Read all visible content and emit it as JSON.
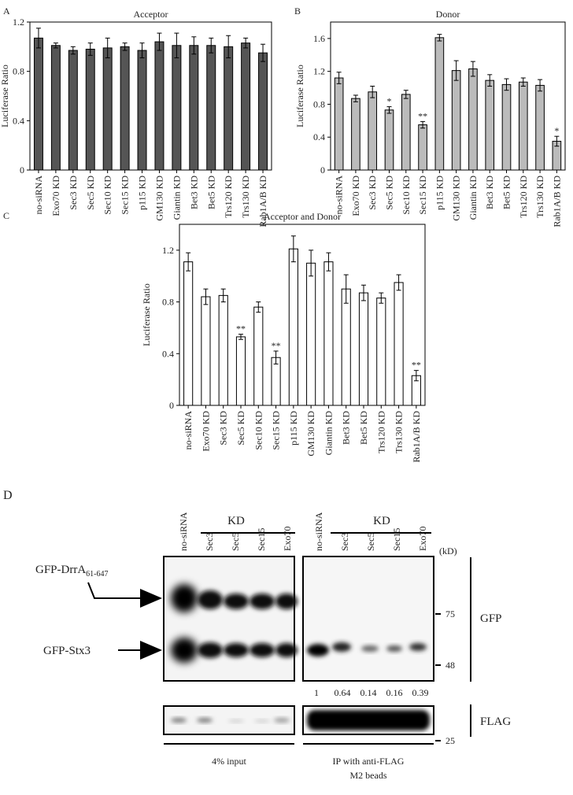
{
  "chart_data": [
    {
      "type": "bar",
      "panel_label": "A",
      "title": "Acceptor",
      "ylabel": "Luciferase Ratio",
      "categories": [
        "no-siRNA",
        "Exo70 KD",
        "Sec3 KD",
        "Sec5 KD",
        "Sec10 KD",
        "Sec15 KD",
        "p115 KD",
        "GM130 KD",
        "Giantin KD",
        "Bet3 KD",
        "Bet5 KD",
        "Trs120 KD",
        "Trs130 KD",
        "Rab1A/B KD"
      ],
      "values": [
        1.07,
        1.01,
        0.97,
        0.98,
        0.99,
        1.0,
        0.97,
        1.04,
        1.01,
        1.01,
        1.01,
        1.0,
        1.03,
        0.95
      ],
      "errors": [
        0.08,
        0.02,
        0.03,
        0.05,
        0.08,
        0.03,
        0.06,
        0.07,
        0.1,
        0.07,
        0.06,
        0.09,
        0.04,
        0.07
      ],
      "color": "#555555",
      "ylim": [
        0,
        1.2
      ],
      "yticks": [
        0,
        0.4,
        0.8,
        1.2
      ]
    },
    {
      "type": "bar",
      "panel_label": "B",
      "title": "Donor",
      "ylabel": "Luciferase Ratio",
      "categories": [
        "no-siRNA",
        "Exo70 KD",
        "Sec3 KD",
        "Sec5 KD",
        "Sec10 KD",
        "Sec15 KD",
        "p115 KD",
        "GM130 KD",
        "Giantin KD",
        "Bet3 KD",
        "Bet5 KD",
        "Trs120 KD",
        "Trs130 KD",
        "Rab1A/B KD"
      ],
      "values": [
        1.12,
        0.87,
        0.95,
        0.73,
        0.92,
        0.55,
        1.61,
        1.21,
        1.23,
        1.09,
        1.04,
        1.07,
        1.03,
        0.35
      ],
      "errors": [
        0.07,
        0.04,
        0.07,
        0.04,
        0.05,
        0.04,
        0.04,
        0.12,
        0.09,
        0.07,
        0.07,
        0.05,
        0.07,
        0.06
      ],
      "significance": [
        null,
        null,
        null,
        "*",
        null,
        "**",
        null,
        null,
        null,
        null,
        null,
        null,
        null,
        "*"
      ],
      "color": "#bbbbbb",
      "ylim": [
        0,
        1.8
      ],
      "yticks": [
        0,
        0.4,
        0.8,
        1.2,
        1.6
      ]
    },
    {
      "type": "bar",
      "panel_label": "C",
      "title": "Acceptor and Donor",
      "ylabel": "Luciferase Ratio",
      "categories": [
        "no-siRNA",
        "Exo70 KD",
        "Sec3 KD",
        "Sec5 KD",
        "Sec10 KD",
        "Sec15 KD",
        "p115 KD",
        "GM130 KD",
        "Giantin KD",
        "Bet3 KD",
        "Bet5 KD",
        "Trs120 KD",
        "Trs130 KD",
        "Rab1A/B KD"
      ],
      "values": [
        1.11,
        0.84,
        0.85,
        0.53,
        0.76,
        0.37,
        1.21,
        1.1,
        1.11,
        0.9,
        0.87,
        0.83,
        0.95,
        0.23
      ],
      "errors": [
        0.07,
        0.06,
        0.05,
        0.02,
        0.04,
        0.05,
        0.1,
        0.1,
        0.07,
        0.11,
        0.06,
        0.04,
        0.06,
        0.04
      ],
      "significance": [
        null,
        null,
        null,
        "**",
        null,
        "**",
        null,
        null,
        null,
        null,
        null,
        null,
        null,
        "**"
      ],
      "color": "#ffffff",
      "ylim": [
        0,
        1.4
      ],
      "yticks": [
        0,
        0.4,
        0.8,
        1.2
      ]
    }
  ],
  "blot": {
    "panel_label": "D",
    "kd_header": "KD",
    "lanes": [
      "no-siRNA",
      "Sec3",
      "Sec5",
      "Sec15",
      "Exo70"
    ],
    "proteins": [
      {
        "name": "GFP-DrrA",
        "subscript": "61-647"
      },
      {
        "name": "GFP-Stx3"
      }
    ],
    "marker_unit": "(kD)",
    "markers": [
      "75",
      "48",
      "25"
    ],
    "antibodies": [
      "GFP",
      "FLAG"
    ],
    "quantification": [
      1,
      0.64,
      0.14,
      0.16,
      0.39
    ],
    "captions": {
      "input": "4% input",
      "ip": [
        "IP with anti-FLAG",
        "M2 beads"
      ]
    }
  }
}
